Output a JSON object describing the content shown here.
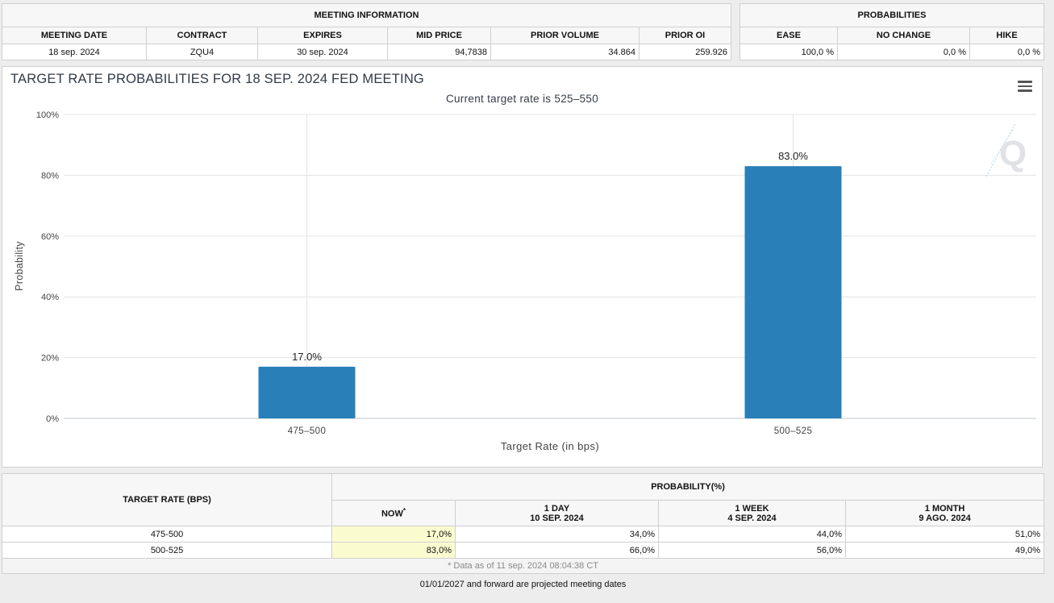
{
  "meeting_info": {
    "title": "MEETING INFORMATION",
    "headers": [
      "MEETING DATE",
      "CONTRACT",
      "EXPIRES",
      "MID PRICE",
      "PRIOR VOLUME",
      "PRIOR OI"
    ],
    "values": [
      "18 sep. 2024",
      "ZQU4",
      "30 sep. 2024",
      "94,7838",
      "34.864",
      "259.926"
    ]
  },
  "probabilities": {
    "title": "PROBABILITIES",
    "headers": [
      "EASE",
      "NO CHANGE",
      "HIKE"
    ],
    "values": [
      "100,0 %",
      "0,0 %",
      "0,0 %"
    ]
  },
  "chart": {
    "menu_icon": "hamburger-menu-icon",
    "watermark_icon": "q-logo-watermark-icon",
    "bar_color": "#2980b9"
  },
  "chart_data": {
    "type": "bar",
    "title": "TARGET RATE PROBABILITIES FOR 18 SEP. 2024 FED MEETING",
    "subtitle": "Current target rate is 525–550",
    "xlabel": "Target Rate (in bps)",
    "ylabel": "Probability",
    "categories": [
      "475–500",
      "500–525"
    ],
    "values": [
      17.0,
      83.0
    ],
    "data_labels": [
      "17.0%",
      "83.0%"
    ],
    "ylim": [
      0,
      100
    ],
    "yticks": [
      "0%",
      "20%",
      "40%",
      "60%",
      "80%",
      "100%"
    ],
    "grid": true
  },
  "probability_table": {
    "target_rate_header": "TARGET RATE (BPS)",
    "group_header": "PROBABILITY(%)",
    "now_label": "NOW",
    "now_marker": "*",
    "columns": [
      {
        "label": "1 DAY",
        "date": "10 SEP. 2024"
      },
      {
        "label": "1 WEEK",
        "date": "4 SEP. 2024"
      },
      {
        "label": "1 MONTH",
        "date": "9 AGO. 2024"
      }
    ],
    "rows": [
      {
        "rate": "475-500",
        "now": "17,0%",
        "day": "34,0%",
        "week": "44,0%",
        "month": "51,0%"
      },
      {
        "rate": "500-525",
        "now": "83,0%",
        "day": "66,0%",
        "week": "56,0%",
        "month": "49,0%"
      }
    ],
    "footnote": "* Data as of 11 sep. 2024 08:04:38 CT"
  },
  "projected_note": "01/01/2027 and forward are projected meeting dates"
}
